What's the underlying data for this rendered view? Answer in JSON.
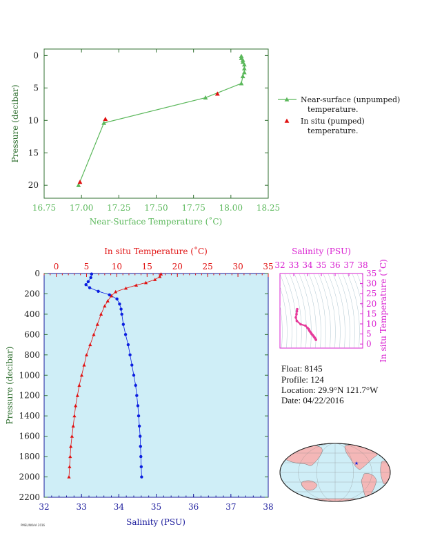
{
  "colors": {
    "green": "#5bb85b",
    "red": "#e01010",
    "blue": "#0a1ee0",
    "magenta": "#d81fd0",
    "navy": "#1a1a9c",
    "plot_bg": "#cfeef7",
    "land": "#f4b7b7",
    "ocean": "#cfeef7"
  },
  "float_info": {
    "float": "Float:  8145",
    "profile": "Profile:  124",
    "location": "Location:  29.9°N  121.7°W",
    "date": "Date:  04/22/2016"
  },
  "footnote": "PMEL/NOAA 2016",
  "chart_data": [
    {
      "type": "line",
      "title": "",
      "xlabel": "Near-Surface Temperature (˚C)",
      "ylabel": "Pressure (decibar)",
      "xlim": [
        16.75,
        18.25
      ],
      "ylim": [
        22,
        -1
      ],
      "xticks": [
        "16.75",
        "17.00",
        "17.25",
        "17.50",
        "17.75",
        "18.00",
        "18.25"
      ],
      "yticks": [
        "0",
        "5",
        "10",
        "15",
        "20"
      ],
      "legend_position": "right",
      "series": [
        {
          "name": "Near-surface (unpumped) temperature.",
          "marker": "triangle-line",
          "color": "#5bb85b",
          "points": [
            [
              18.07,
              0.1
            ],
            [
              18.07,
              0.4
            ],
            [
              18.08,
              0.7
            ],
            [
              18.08,
              1.0
            ],
            [
              18.09,
              1.4
            ],
            [
              18.09,
              2.0
            ],
            [
              18.09,
              2.6
            ],
            [
              18.08,
              3.2
            ],
            [
              18.07,
              4.3
            ],
            [
              17.83,
              6.5
            ],
            [
              17.15,
              10.4
            ],
            [
              16.98,
              20.0
            ]
          ]
        },
        {
          "name": "In situ (pumped) temperature.",
          "marker": "triangle",
          "color": "#e01010",
          "points": [
            [
              17.91,
              5.9
            ],
            [
              17.16,
              9.8
            ],
            [
              16.99,
              19.5
            ]
          ]
        }
      ]
    },
    {
      "type": "line",
      "title": "",
      "xlabel_top": "In situ Temperature (˚C)",
      "xlabel_bottom": "Salinity (PSU)",
      "ylabel": "Pressure (decibar)",
      "x_top_lim": [
        -2,
        35
      ],
      "x_top_ticks": [
        "0",
        "5",
        "10",
        "15",
        "20",
        "25",
        "30",
        "35"
      ],
      "x_bottom_lim": [
        32,
        38
      ],
      "x_bottom_ticks": [
        "32",
        "33",
        "34",
        "35",
        "36",
        "37",
        "38"
      ],
      "ylim": [
        2200,
        0
      ],
      "yticks": [
        "0",
        "200",
        "400",
        "600",
        "800",
        "1000",
        "1200",
        "1400",
        "1600",
        "1800",
        "2000",
        "2200"
      ],
      "temperature_profile": [
        [
          17.3,
          5
        ],
        [
          17.1,
          30
        ],
        [
          16.3,
          60
        ],
        [
          14.8,
          90
        ],
        [
          13.2,
          115
        ],
        [
          11.5,
          145
        ],
        [
          9.8,
          180
        ],
        [
          9.1,
          220
        ],
        [
          8.5,
          270
        ],
        [
          8.0,
          320
        ],
        [
          7.4,
          400
        ],
        [
          6.8,
          500
        ],
        [
          6.2,
          600
        ],
        [
          5.6,
          700
        ],
        [
          5.0,
          800
        ],
        [
          4.6,
          900
        ],
        [
          4.2,
          1000
        ],
        [
          3.8,
          1100
        ],
        [
          3.5,
          1200
        ],
        [
          3.2,
          1300
        ],
        [
          3.0,
          1400
        ],
        [
          2.8,
          1500
        ],
        [
          2.6,
          1600
        ],
        [
          2.4,
          1700
        ],
        [
          2.3,
          1800
        ],
        [
          2.2,
          1900
        ],
        [
          2.1,
          2000
        ]
      ],
      "salinity_profile": [
        [
          33.27,
          5
        ],
        [
          33.25,
          40
        ],
        [
          33.18,
          80
        ],
        [
          33.12,
          110
        ],
        [
          33.22,
          140
        ],
        [
          33.45,
          175
        ],
        [
          33.75,
          210
        ],
        [
          33.95,
          250
        ],
        [
          34.02,
          300
        ],
        [
          34.06,
          350
        ],
        [
          34.08,
          400
        ],
        [
          34.12,
          500
        ],
        [
          34.18,
          600
        ],
        [
          34.25,
          700
        ],
        [
          34.3,
          800
        ],
        [
          34.35,
          900
        ],
        [
          34.4,
          1000
        ],
        [
          34.45,
          1100
        ],
        [
          34.48,
          1200
        ],
        [
          34.51,
          1300
        ],
        [
          34.53,
          1400
        ],
        [
          34.55,
          1500
        ],
        [
          34.57,
          1600
        ],
        [
          34.58,
          1700
        ],
        [
          34.59,
          1800
        ],
        [
          34.6,
          1900
        ],
        [
          34.61,
          2000
        ]
      ]
    },
    {
      "type": "scatter",
      "title": "",
      "xlabel": "Salinity (PSU)",
      "ylabel": "In situ Temperature (˚C)",
      "xlim": [
        32,
        38
      ],
      "ylim": [
        -2,
        35
      ],
      "xticks": [
        "32",
        "33",
        "34",
        "35",
        "36",
        "37",
        "38"
      ],
      "yticks": [
        "0",
        "5",
        "10",
        "15",
        "20",
        "25",
        "30",
        "35"
      ],
      "points": [
        [
          33.25,
          17.3
        ],
        [
          33.23,
          16.3
        ],
        [
          33.2,
          14.8
        ],
        [
          33.15,
          13.2
        ],
        [
          33.22,
          11.5
        ],
        [
          33.5,
          9.8
        ],
        [
          33.85,
          9.1
        ],
        [
          34.0,
          8.0
        ],
        [
          34.08,
          7.4
        ],
        [
          34.12,
          6.8
        ],
        [
          34.18,
          6.2
        ],
        [
          34.25,
          5.6
        ],
        [
          34.3,
          5.0
        ],
        [
          34.38,
          4.4
        ],
        [
          34.45,
          3.8
        ],
        [
          34.5,
          3.3
        ],
        [
          34.55,
          2.9
        ],
        [
          34.58,
          2.5
        ],
        [
          34.61,
          2.1
        ]
      ]
    }
  ]
}
